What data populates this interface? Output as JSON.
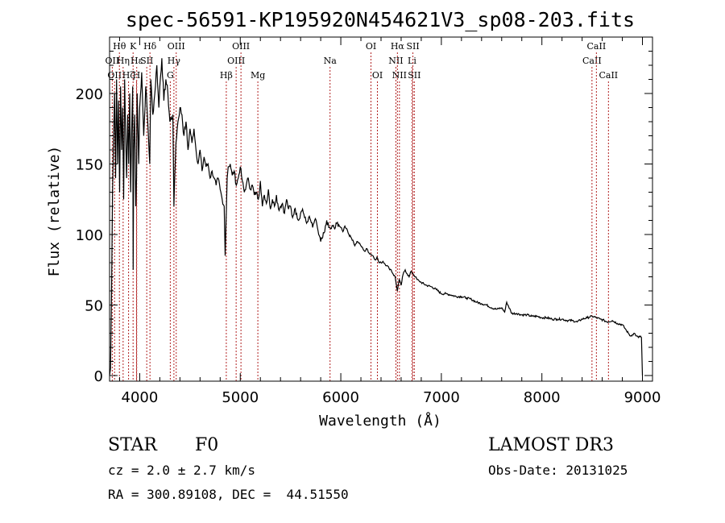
{
  "chart_data": {
    "type": "line",
    "title": "spec-56591-KP195920N454621V3_sp08-203.fits",
    "xlabel": "Wavelength (Å)",
    "ylabel": "Flux (relative)",
    "xlim": [
      3700,
      9100
    ],
    "ylim": [
      -4,
      240
    ],
    "xticks": [
      4000,
      5000,
      6000,
      7000,
      8000,
      9000
    ],
    "yticks": [
      0,
      50,
      100,
      150,
      200
    ],
    "series": [
      {
        "name": "spectrum",
        "x": [
          3700,
          3710,
          3720,
          3730,
          3740,
          3750,
          3760,
          3770,
          3780,
          3790,
          3800,
          3810,
          3820,
          3830,
          3840,
          3850,
          3860,
          3870,
          3880,
          3890,
          3900,
          3910,
          3920,
          3930,
          3935,
          3940,
          3950,
          3960,
          3968,
          3975,
          3990,
          4000,
          4020,
          4040,
          4060,
          4080,
          4100,
          4110,
          4130,
          4150,
          4170,
          4190,
          4200,
          4220,
          4240,
          4260,
          4280,
          4300,
          4330,
          4340,
          4360,
          4380,
          4400,
          4420,
          4440,
          4460,
          4480,
          4500,
          4520,
          4540,
          4560,
          4580,
          4600,
          4620,
          4640,
          4660,
          4680,
          4700,
          4720,
          4740,
          4760,
          4780,
          4800,
          4820,
          4840,
          4850,
          4861,
          4870,
          4880,
          4900,
          4920,
          4940,
          4960,
          4980,
          5000,
          5020,
          5040,
          5060,
          5080,
          5100,
          5120,
          5140,
          5160,
          5180,
          5200,
          5220,
          5240,
          5260,
          5280,
          5300,
          5320,
          5340,
          5360,
          5380,
          5400,
          5420,
          5440,
          5460,
          5480,
          5500,
          5520,
          5540,
          5560,
          5580,
          5600,
          5620,
          5640,
          5660,
          5680,
          5700,
          5720,
          5740,
          5760,
          5780,
          5800,
          5820,
          5840,
          5860,
          5880,
          5900,
          5920,
          5940,
          5960,
          5980,
          6000,
          6020,
          6040,
          6060,
          6080,
          6100,
          6120,
          6140,
          6160,
          6180,
          6200,
          6220,
          6240,
          6260,
          6280,
          6300,
          6320,
          6340,
          6360,
          6380,
          6400,
          6420,
          6440,
          6460,
          6480,
          6500,
          6520,
          6540,
          6563,
          6580,
          6600,
          6620,
          6640,
          6660,
          6680,
          6700,
          6720,
          6740,
          6760,
          6780,
          6800,
          6850,
          6900,
          6950,
          7000,
          7050,
          7100,
          7150,
          7200,
          7250,
          7300,
          7350,
          7400,
          7450,
          7500,
          7550,
          7600,
          7630,
          7650,
          7700,
          7750,
          7800,
          7850,
          7900,
          7950,
          8000,
          8050,
          8100,
          8150,
          8200,
          8250,
          8300,
          8350,
          8400,
          8450,
          8500,
          8542,
          8580,
          8620,
          8650,
          8700,
          8750,
          8800,
          8840,
          8860,
          8880,
          8900,
          8920,
          8940,
          8960,
          8980,
          8990,
          9000
        ],
        "values": [
          0,
          5,
          60,
          130,
          170,
          200,
          140,
          210,
          150,
          195,
          130,
          205,
          160,
          190,
          125,
          210,
          170,
          140,
          185,
          150,
          200,
          130,
          175,
          205,
          75,
          160,
          185,
          120,
          140,
          200,
          150,
          190,
          215,
          170,
          205,
          180,
          150,
          210,
          185,
          200,
          220,
          190,
          205,
          225,
          195,
          210,
          200,
          180,
          185,
          120,
          165,
          180,
          190,
          185,
          170,
          180,
          160,
          175,
          165,
          175,
          160,
          150,
          160,
          145,
          155,
          148,
          150,
          140,
          145,
          140,
          135,
          140,
          132,
          125,
          120,
          85,
          115,
          140,
          148,
          150,
          142,
          145,
          135,
          140,
          148,
          138,
          130,
          135,
          140,
          132,
          135,
          128,
          130,
          125,
          138,
          120,
          128,
          122,
          132,
          118,
          125,
          120,
          128,
          118,
          120,
          122,
          115,
          125,
          118,
          120,
          112,
          118,
          115,
          110,
          115,
          118,
          112,
          108,
          112,
          110,
          105,
          110,
          108,
          100,
          95,
          98,
          102,
          110,
          105,
          104,
          106,
          104,
          108,
          107,
          105,
          102,
          106,
          104,
          100,
          98,
          96,
          92,
          95,
          94,
          92,
          90,
          88,
          90,
          87,
          86,
          85,
          82,
          84,
          80,
          80,
          81,
          79,
          78,
          76,
          75,
          72,
          70,
          60,
          68,
          64,
          72,
          75,
          72,
          70,
          74,
          72,
          70,
          68,
          67,
          66,
          64,
          63,
          61,
          58,
          58,
          57,
          56,
          56,
          55,
          54,
          52,
          51,
          50,
          48,
          47,
          48,
          45,
          52,
          44,
          44,
          43,
          43,
          42,
          42,
          41,
          41,
          40,
          40,
          40,
          39,
          39,
          38,
          40,
          41,
          42,
          41,
          40,
          39,
          38,
          39,
          37,
          36,
          32,
          30,
          28,
          29,
          30,
          28,
          27,
          28,
          27,
          0
        ]
      }
    ],
    "line_markers": [
      {
        "wl": 3727,
        "label": "OII",
        "row": 2
      },
      {
        "wl": 3750,
        "label": "OII",
        "row": 3
      },
      {
        "wl": 3798,
        "label": "Hθ",
        "row": 1
      },
      {
        "wl": 3835,
        "label": "Hη",
        "row": 2
      },
      {
        "wl": 3889,
        "label": "Hζ",
        "row": 3
      },
      {
        "wl": 3934,
        "label": "K",
        "row": 1
      },
      {
        "wl": 3968,
        "label": "H",
        "row": 3
      },
      {
        "wl": 3970,
        "label": "Hε",
        "row": 2
      },
      {
        "wl": 4070,
        "label": "SII",
        "row": 2
      },
      {
        "wl": 4102,
        "label": "Hδ",
        "row": 1
      },
      {
        "wl": 4304,
        "label": "G",
        "row": 3
      },
      {
        "wl": 4340,
        "label": "Hγ",
        "row": 2
      },
      {
        "wl": 4363,
        "label": "OIII",
        "row": 1
      },
      {
        "wl": 4861,
        "label": "Hβ",
        "row": 3
      },
      {
        "wl": 4959,
        "label": "OIII",
        "row": 2
      },
      {
        "wl": 5007,
        "label": "OIII",
        "row": 1
      },
      {
        "wl": 5175,
        "label": "Mg",
        "row": 3
      },
      {
        "wl": 5893,
        "label": "Na",
        "row": 2
      },
      {
        "wl": 6300,
        "label": "OI",
        "row": 1
      },
      {
        "wl": 6364,
        "label": "OI",
        "row": 3
      },
      {
        "wl": 6548,
        "label": "NII",
        "row": 2
      },
      {
        "wl": 6563,
        "label": "Hα",
        "row": 1
      },
      {
        "wl": 6583,
        "label": "NII",
        "row": 3
      },
      {
        "wl": 6708,
        "label": "Li",
        "row": 2
      },
      {
        "wl": 6717,
        "label": "SII",
        "row": 1
      },
      {
        "wl": 6731,
        "label": "SII",
        "row": 3
      },
      {
        "wl": 8498,
        "label": "CaII",
        "row": 2
      },
      {
        "wl": 8542,
        "label": "CaII",
        "row": 1
      },
      {
        "wl": 8662,
        "label": "CaII",
        "row": 3
      }
    ]
  },
  "info": {
    "class": "STAR",
    "subclass": "F0",
    "survey": "LAMOST DR3",
    "cz": "cz = 2.0 ± 2.7 km/s",
    "obs_date": "Obs-Date: 20131025",
    "radec": "RA = 300.89108, DEC =  44.51550"
  },
  "colors": {
    "spectrum": "#000000",
    "marker": "#b22222",
    "axis": "#000000"
  }
}
